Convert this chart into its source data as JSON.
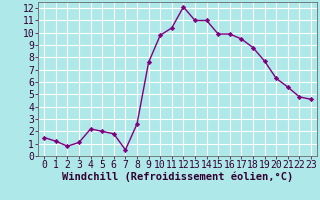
{
  "x": [
    0,
    1,
    2,
    3,
    4,
    5,
    6,
    7,
    8,
    9,
    10,
    11,
    12,
    13,
    14,
    15,
    16,
    17,
    18,
    19,
    20,
    21,
    22,
    23
  ],
  "y": [
    1.5,
    1.2,
    0.8,
    1.1,
    2.2,
    2.0,
    1.8,
    0.5,
    2.6,
    7.6,
    9.8,
    10.4,
    12.1,
    11.0,
    11.0,
    9.9,
    9.9,
    9.5,
    8.8,
    7.7,
    6.3,
    5.6,
    4.8,
    4.6
  ],
  "line_color": "#800080",
  "marker": "D",
  "marker_size": 2.2,
  "linewidth": 1.0,
  "background_color": "#aee8e8",
  "grid_color": "#ffffff",
  "xlabel": "Windchill (Refroidissement éolien,°C)",
  "xlabel_fontsize": 7.5,
  "tick_fontsize": 7,
  "xlim": [
    -0.5,
    23.5
  ],
  "ylim": [
    0,
    12.5
  ],
  "yticks": [
    0,
    1,
    2,
    3,
    4,
    5,
    6,
    7,
    8,
    9,
    10,
    11,
    12
  ],
  "xticks": [
    0,
    1,
    2,
    3,
    4,
    5,
    6,
    7,
    8,
    9,
    10,
    11,
    12,
    13,
    14,
    15,
    16,
    17,
    18,
    19,
    20,
    21,
    22,
    23
  ]
}
